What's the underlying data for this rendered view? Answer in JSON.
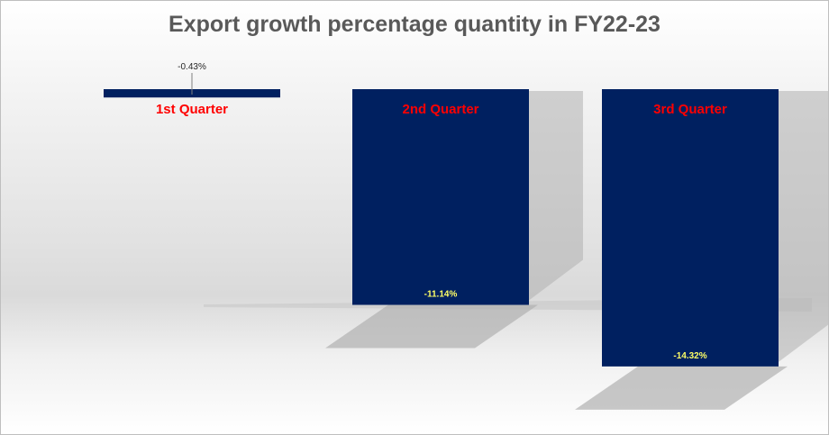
{
  "chart_data": {
    "type": "bar",
    "title": "Export growth percentage quantity in FY22-23",
    "categories": [
      "1st Quarter",
      "2nd Quarter",
      "3rd Quarter"
    ],
    "values": [
      -0.43,
      -11.14,
      -14.32
    ],
    "data_labels": [
      "-0.43%",
      "-11.14%",
      "-14.32%"
    ],
    "xlabel": "",
    "ylabel": "",
    "grid": false,
    "legend": "none",
    "colors": {
      "bar": "#002060",
      "category_label": "#ff0000",
      "data_label_inside": "#ffff66",
      "data_label_outside": "#262626",
      "title": "#595959"
    }
  }
}
